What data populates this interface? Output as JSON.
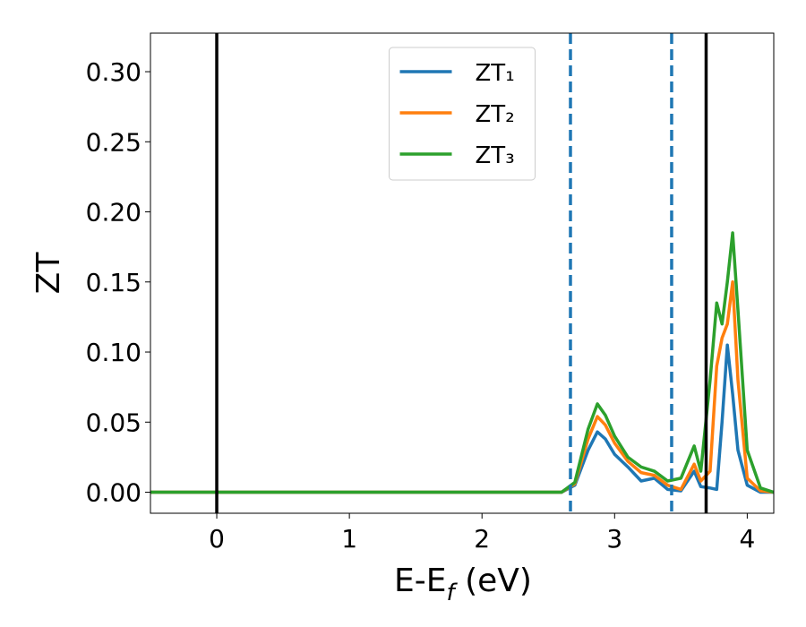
{
  "chart_data": {
    "type": "line",
    "xlabel": [
      "E-E",
      "f",
      " (eV)"
    ],
    "ylabel": "ZT",
    "x": [
      -0.5,
      2.6,
      2.7,
      2.8,
      2.87,
      2.93,
      3.0,
      3.1,
      3.2,
      3.3,
      3.4,
      3.5,
      3.6,
      3.65,
      3.72,
      3.77,
      3.81,
      3.85,
      3.89,
      3.93,
      4.0,
      4.1,
      4.2
    ],
    "series": [
      {
        "name": "ZT₁",
        "color": "#1f77b4",
        "values": [
          0,
          0,
          0.005,
          0.03,
          0.043,
          0.038,
          0.027,
          0.018,
          0.008,
          0.01,
          0.002,
          0.001,
          0.015,
          0.004,
          0.003,
          0.002,
          0.05,
          0.105,
          0.07,
          0.03,
          0.005,
          0,
          0
        ]
      },
      {
        "name": "ZT₂",
        "color": "#ff7f0e",
        "values": [
          0,
          0,
          0.006,
          0.038,
          0.054,
          0.048,
          0.035,
          0.022,
          0.014,
          0.012,
          0.005,
          0.002,
          0.02,
          0.008,
          0.015,
          0.09,
          0.11,
          0.12,
          0.15,
          0.08,
          0.01,
          0.001,
          0
        ]
      },
      {
        "name": "ZT₃",
        "color": "#2ca02c",
        "values": [
          0,
          0,
          0.007,
          0.045,
          0.063,
          0.055,
          0.04,
          0.025,
          0.018,
          0.015,
          0.008,
          0.01,
          0.033,
          0.015,
          0.08,
          0.135,
          0.12,
          0.15,
          0.185,
          0.13,
          0.03,
          0.003,
          0
        ]
      }
    ],
    "vlines": [
      {
        "x": 0,
        "style": "solid",
        "color": "#000000"
      },
      {
        "x": 3.69,
        "style": "solid",
        "color": "#000000"
      },
      {
        "x": 2.667,
        "style": "dashed",
        "color": "#1f77b4"
      },
      {
        "x": 3.43,
        "style": "dashed",
        "color": "#1f77b4"
      }
    ],
    "xlim": [
      -0.5,
      4.2
    ],
    "ylim": [
      -0.015,
      0.3275
    ],
    "xticks": [
      0,
      1,
      2,
      3,
      4
    ],
    "yticks": [
      {
        "value": 0,
        "label": "0.00"
      },
      {
        "value": 0.05,
        "label": "0.05"
      },
      {
        "value": 0.1,
        "label": "0.10"
      },
      {
        "value": 0.15,
        "label": "0.15"
      },
      {
        "value": 0.2,
        "label": "0.20"
      },
      {
        "value": 0.25,
        "label": "0.25"
      },
      {
        "value": 0.3,
        "label": "0.30"
      }
    ],
    "legend": "upper center"
  }
}
